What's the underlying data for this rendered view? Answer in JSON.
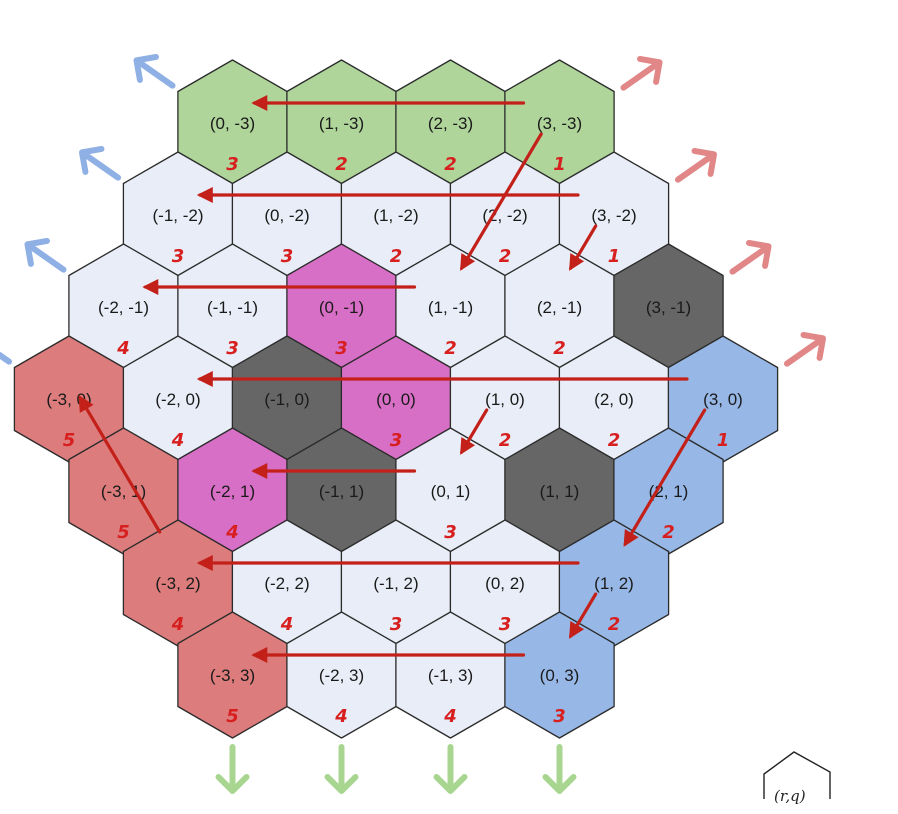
{
  "colors": {
    "default": "#e8edf7",
    "green": "#afd59a",
    "red": "#dd7c7c",
    "blue": "#97b8e6",
    "pink": "#d86fc6",
    "dark": "#666666",
    "flow_arrow": "#c4201a",
    "edge_blue": "#8fb0e4",
    "edge_pink": "#e18787",
    "edge_green": "#a8d690"
  },
  "hexes": [
    {
      "r": 0,
      "q": -3,
      "label": "(0, -3)",
      "cost": "3",
      "fill": "green"
    },
    {
      "r": 1,
      "q": -3,
      "label": "(1, -3)",
      "cost": "2",
      "fill": "green"
    },
    {
      "r": 2,
      "q": -3,
      "label": "(2, -3)",
      "cost": "2",
      "fill": "green"
    },
    {
      "r": 3,
      "q": -3,
      "label": "(3, -3)",
      "cost": "1",
      "fill": "green"
    },
    {
      "r": -1,
      "q": -2,
      "label": "(-1, -2)",
      "cost": "3",
      "fill": "default"
    },
    {
      "r": 0,
      "q": -2,
      "label": "(0, -2)",
      "cost": "3",
      "fill": "default"
    },
    {
      "r": 1,
      "q": -2,
      "label": "(1, -2)",
      "cost": "2",
      "fill": "default"
    },
    {
      "r": 2,
      "q": -2,
      "label": "(2, -2)",
      "cost": "2",
      "fill": "default"
    },
    {
      "r": 3,
      "q": -2,
      "label": "(3, -2)",
      "cost": "1",
      "fill": "default"
    },
    {
      "r": -2,
      "q": -1,
      "label": "(-2, -1)",
      "cost": "4",
      "fill": "default"
    },
    {
      "r": -1,
      "q": -1,
      "label": "(-1, -1)",
      "cost": "3",
      "fill": "default"
    },
    {
      "r": 0,
      "q": -1,
      "label": "(0, -1)",
      "cost": "3",
      "fill": "pink"
    },
    {
      "r": 1,
      "q": -1,
      "label": "(1, -1)",
      "cost": "2",
      "fill": "default"
    },
    {
      "r": 2,
      "q": -1,
      "label": "(2, -1)",
      "cost": "2",
      "fill": "default"
    },
    {
      "r": 3,
      "q": -1,
      "label": "(3, -1)",
      "cost": "",
      "fill": "dark"
    },
    {
      "r": -3,
      "q": 0,
      "label": "(-3, 0)",
      "cost": "5",
      "fill": "red"
    },
    {
      "r": -2,
      "q": 0,
      "label": "(-2, 0)",
      "cost": "4",
      "fill": "default"
    },
    {
      "r": -1,
      "q": 0,
      "label": "(-1, 0)",
      "cost": "",
      "fill": "dark"
    },
    {
      "r": 0,
      "q": 0,
      "label": "(0, 0)",
      "cost": "3",
      "fill": "pink"
    },
    {
      "r": 1,
      "q": 0,
      "label": "(1, 0)",
      "cost": "2",
      "fill": "default"
    },
    {
      "r": 2,
      "q": 0,
      "label": "(2, 0)",
      "cost": "2",
      "fill": "default"
    },
    {
      "r": 3,
      "q": 0,
      "label": "(3, 0)",
      "cost": "1",
      "fill": "blue"
    },
    {
      "r": -3,
      "q": 1,
      "label": "(-3, 1)",
      "cost": "5",
      "fill": "red"
    },
    {
      "r": -2,
      "q": 1,
      "label": "(-2, 1)",
      "cost": "4",
      "fill": "pink"
    },
    {
      "r": -1,
      "q": 1,
      "label": "(-1, 1)",
      "cost": "",
      "fill": "dark"
    },
    {
      "r": 0,
      "q": 1,
      "label": "(0, 1)",
      "cost": "3",
      "fill": "default"
    },
    {
      "r": 1,
      "q": 1,
      "label": "(1, 1)",
      "cost": "",
      "fill": "dark"
    },
    {
      "r": 2,
      "q": 1,
      "label": "(2, 1)",
      "cost": "2",
      "fill": "blue"
    },
    {
      "r": -3,
      "q": 2,
      "label": "(-3, 2)",
      "cost": "4",
      "fill": "red"
    },
    {
      "r": -2,
      "q": 2,
      "label": "(-2, 2)",
      "cost": "4",
      "fill": "default"
    },
    {
      "r": -1,
      "q": 2,
      "label": "(-1, 2)",
      "cost": "3",
      "fill": "default"
    },
    {
      "r": 0,
      "q": 2,
      "label": "(0, 2)",
      "cost": "3",
      "fill": "default"
    },
    {
      "r": 1,
      "q": 2,
      "label": "(1, 2)",
      "cost": "2",
      "fill": "blue"
    },
    {
      "r": -3,
      "q": 3,
      "label": "(-3, 3)",
      "cost": "5",
      "fill": "red"
    },
    {
      "r": -2,
      "q": 3,
      "label": "(-2, 3)",
      "cost": "4",
      "fill": "default"
    },
    {
      "r": -1,
      "q": 3,
      "label": "(-1, 3)",
      "cost": "4",
      "fill": "default"
    },
    {
      "r": 0,
      "q": 3,
      "label": "(0, 3)",
      "cost": "3",
      "fill": "blue"
    }
  ],
  "flow_arrows": [
    {
      "from": [
        3,
        -3
      ],
      "to": [
        0,
        -3
      ]
    },
    {
      "from": [
        3,
        -2
      ],
      "to": [
        -1,
        -2
      ]
    },
    {
      "from": [
        1,
        -1
      ],
      "to": [
        -2,
        -1
      ]
    },
    {
      "from": [
        3,
        -3
      ],
      "to": [
        1,
        -1
      ]
    },
    {
      "from": [
        3,
        -2
      ],
      "to": [
        2,
        -1
      ]
    },
    {
      "from": [
        3,
        0
      ],
      "to": [
        -2,
        0
      ]
    },
    {
      "from": [
        1,
        0
      ],
      "to": [
        0,
        1
      ]
    },
    {
      "from": [
        0,
        1
      ],
      "to": [
        -2,
        1
      ]
    },
    {
      "from": [
        3,
        0
      ],
      "to": [
        1,
        2
      ]
    },
    {
      "from": [
        1,
        2
      ],
      "to": [
        -3,
        2
      ]
    },
    {
      "from": [
        1,
        2
      ],
      "to": [
        0,
        3
      ]
    },
    {
      "from": [
        0,
        3
      ],
      "to": [
        -3,
        3
      ]
    },
    {
      "from": [
        -3,
        2
      ],
      "to": [
        -3,
        0
      ]
    }
  ],
  "edge_arrows": {
    "upper_left": 4,
    "upper_right": 4,
    "down": 4
  },
  "legend": {
    "label": "(r,q)"
  }
}
